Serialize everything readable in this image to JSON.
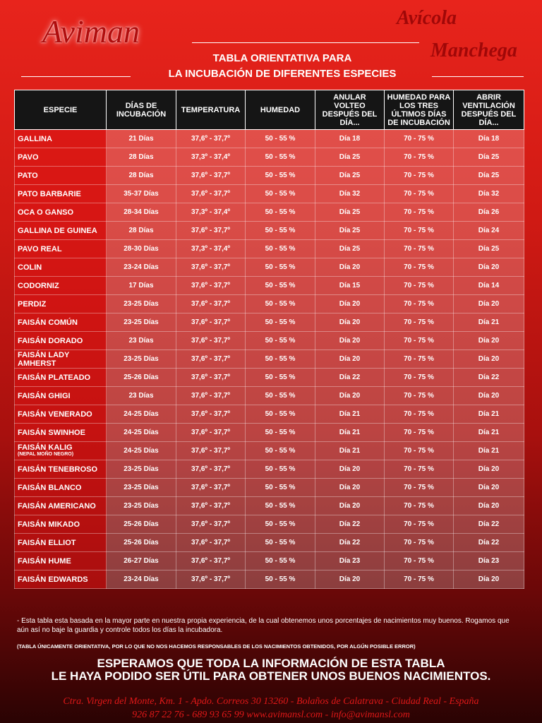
{
  "header": {
    "logo": "Aviman",
    "brand_line1": "Avícola",
    "brand_line2": "Manchega",
    "title_line1": "TABLA ORIENTATIVA PARA",
    "title_line2": "LA INCUBACIÓN DE DIFERENTES ESPECIES"
  },
  "table": {
    "columns": [
      "ESPECIE",
      "DÍAS DE INCUBACIÓN",
      "TEMPERATURA",
      "HUMEDAD",
      "ANULAR VOLTEO DESPUÉS DEL DÍA...",
      "HUMEDAD PARA LOS TRES ÚLTIMOS DÍAS DE INCUBACIÓN",
      "ABRIR VENTILACIÓN DESPUÉS DEL DÍA..."
    ],
    "rows": [
      {
        "cells": [
          "GALLINA",
          "21 Días",
          "37,6º - 37,7º",
          "50 - 55 %",
          "Día 18",
          "70 - 75 %",
          "Día 18"
        ]
      },
      {
        "cells": [
          "PAVO",
          "28 Días",
          "37,3º - 37,4º",
          "50 - 55 %",
          "Día 25",
          "70 - 75 %",
          "Día 25"
        ]
      },
      {
        "cells": [
          "PATO",
          "28 Días",
          "37,6º - 37,7º",
          "50 - 55 %",
          "Día 25",
          "70 - 75 %",
          "Día 25"
        ]
      },
      {
        "cells": [
          "PATO BARBARIE",
          "35-37 Días",
          "37,6º - 37,7º",
          "50 - 55 %",
          "Día 32",
          "70 - 75 %",
          "Día 32"
        ]
      },
      {
        "cells": [
          "OCA O GANSO",
          "28-34 Días",
          "37,3º - 37,4º",
          "50 - 55 %",
          "Día 25",
          "70 - 75 %",
          "Día 26"
        ]
      },
      {
        "cells": [
          "GALLINA DE GUINEA",
          "28 Días",
          "37,6º - 37,7º",
          "50 - 55 %",
          "Día 25",
          "70 - 75 %",
          "Día 24"
        ]
      },
      {
        "cells": [
          "PAVO REAL",
          "28-30 Días",
          "37,3º - 37,4º",
          "50 - 55 %",
          "Día 25",
          "70 - 75 %",
          "Día 25"
        ]
      },
      {
        "cells": [
          "COLIN",
          "23-24 Días",
          "37,6º - 37,7º",
          "50 - 55 %",
          "Día 20",
          "70 - 75 %",
          "Día 20"
        ]
      },
      {
        "cells": [
          "CODORNIZ",
          "17 Días",
          "37,6º - 37,7º",
          "50 - 55 %",
          "Día 15",
          "70 - 75 %",
          "Día 14"
        ]
      },
      {
        "cells": [
          "PERDIZ",
          "23-25 Días",
          "37,6º - 37,7º",
          "50 - 55 %",
          "Día 20",
          "70 - 75 %",
          "Día 20"
        ]
      },
      {
        "cells": [
          "FAISÁN COMÚN",
          "23-25 Días",
          "37,6º - 37,7º",
          "50 - 55 %",
          "Día 20",
          "70 - 75 %",
          "Día 21"
        ]
      },
      {
        "cells": [
          "FAISÁN DORADO",
          "23 Días",
          "37,6º - 37,7º",
          "50 - 55 %",
          "Día 20",
          "70 - 75 %",
          "Día 20"
        ]
      },
      {
        "cells": [
          "FAISÁN LADY AMHERST",
          "23-25 Días",
          "37,6º - 37,7º",
          "50 - 55 %",
          "Día 20",
          "70 - 75 %",
          "Día 20"
        ]
      },
      {
        "cells": [
          "FAISÁN PLATEADO",
          "25-26 Días",
          "37,6º - 37,7º",
          "50 - 55 %",
          "Día 22",
          "70 - 75 %",
          "Día 22"
        ]
      },
      {
        "cells": [
          "FAISÁN GHIGI",
          "23 Días",
          "37,6º - 37,7º",
          "50 - 55 %",
          "Día 20",
          "70 - 75 %",
          "Día 20"
        ]
      },
      {
        "cells": [
          "FAISÁN VENERADO",
          "24-25 Días",
          "37,6º - 37,7º",
          "50 - 55 %",
          "Día 21",
          "70 - 75 %",
          "Día 21"
        ]
      },
      {
        "cells": [
          "FAISÁN SWINHOE",
          "24-25 Días",
          "37,6º - 37,7º",
          "50 - 55 %",
          "Día 21",
          "70 - 75 %",
          "Día 21"
        ]
      },
      {
        "cells": [
          "FAISÁN KALIG",
          "24-25 Días",
          "37,6º - 37,7º",
          "50 - 55 %",
          "Día 21",
          "70 - 75 %",
          "Día 21"
        ],
        "note": "(NEPAL MOÑO NEGRO)"
      },
      {
        "cells": [
          "FAISÁN TENEBROSO",
          "23-25 Días",
          "37,6º - 37,7º",
          "50 - 55 %",
          "Día 20",
          "70 - 75 %",
          "Día 20"
        ]
      },
      {
        "cells": [
          "FAISÁN BLANCO",
          "23-25 Días",
          "37,6º - 37,7º",
          "50 - 55 %",
          "Día 20",
          "70 - 75 %",
          "Día 20"
        ]
      },
      {
        "cells": [
          "FAISÁN AMERICANO",
          "23-25 Días",
          "37,6º - 37,7º",
          "50 - 55 %",
          "Día 20",
          "70 - 75 %",
          "Día 20"
        ]
      },
      {
        "cells": [
          "FAISÁN MIKADO",
          "25-26 Días",
          "37,6º - 37,7º",
          "50 - 55 %",
          "Día 22",
          "70 - 75 %",
          "Día 22"
        ]
      },
      {
        "cells": [
          "FAISÁN ELLIOT",
          "25-26 Días",
          "37,6º - 37,7º",
          "50 - 55 %",
          "Día 22",
          "70 - 75 %",
          "Día 22"
        ]
      },
      {
        "cells": [
          "FAISÁN HUME",
          "26-27 Días",
          "37,6º - 37,7º",
          "50 - 55 %",
          "Día 23",
          "70 - 75 %",
          "Día 23"
        ]
      },
      {
        "cells": [
          "FAISÁN EDWARDS",
          "23-24 Días",
          "37,6º - 37,7º",
          "50 - 55 %",
          "Día 20",
          "70 - 75 %",
          "Día 20"
        ]
      }
    ]
  },
  "footer": {
    "note": "- Esta tabla esta basada en la mayor parte en nuestra propia experiencia, de la cual obtenemos unos porcentajes de nacimientos muy buenos. Rogamos que aún así no baje la guardia y controle todos los días la incubadora.",
    "disclaimer": "(TABLA ÚNICAMENTE ORIENTATIVA, POR LO QUE NO NOS HACEMOS RESPONSABLES DE LOS NACIMIENTOS OBTENIDOS, POR ALGÚN POSIBLE ERROR)",
    "closing_line1": "ESPERAMOS QUE TODA LA INFORMACIÓN DE  ESTA TABLA",
    "closing_line2": "LE HAYA PODIDO SER ÚTIL PARA OBTENER UNOS BUENOS NACIMIENTOS.",
    "address": "Ctra. Virgen del Monte, Km. 1 - Apdo. Correos 30   13260 - Bolaños de Calatrava - Ciudad Real - España",
    "contact": "926 87 22 76 - 689 93 65 99   www.avimansl.com - info@avimansl.com"
  }
}
